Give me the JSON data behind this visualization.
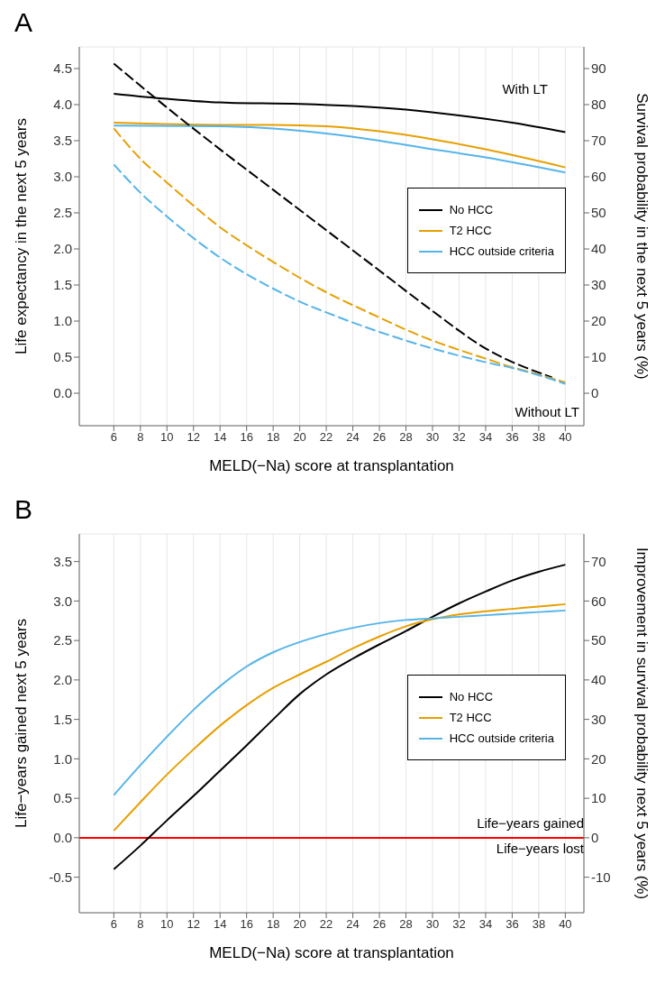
{
  "chart_data": [
    {
      "type": "line",
      "title": "A",
      "xlabel": "MELD(−Na) score at transplantation",
      "ylabel": "Life expectancy in the next 5 years",
      "y2label": "Survival probability in the next 5 years (%)",
      "xlim": [
        3.4,
        41.4
      ],
      "xticks": [
        6,
        8,
        10,
        12,
        14,
        16,
        18,
        20,
        22,
        24,
        26,
        28,
        30,
        32,
        34,
        36,
        38,
        40
      ],
      "ylim": [
        -0.45,
        4.8
      ],
      "yticks": [
        {
          "value": 0,
          "label": "0.0"
        },
        0.5,
        {
          "value": 1,
          "label": "1.0"
        },
        1.5,
        {
          "value": 2,
          "label": "2.0"
        },
        2.5,
        {
          "value": 3,
          "label": "3.0"
        },
        3.5,
        {
          "value": 4,
          "label": "4.0"
        },
        4.5
      ],
      "y2lim": [
        -9,
        96
      ],
      "y2ticks": [
        0,
        10,
        20,
        30,
        40,
        50,
        60,
        70,
        80,
        90
      ],
      "grid": true,
      "legend": "right",
      "series": [
        {
          "name": "No HCC",
          "color": "#000000",
          "line_style": "solid",
          "x": [
            6,
            10,
            14,
            20,
            24,
            28,
            32,
            36,
            40
          ],
          "values": [
            4.15,
            4.08,
            4.03,
            4.01,
            3.98,
            3.93,
            3.85,
            3.75,
            3.62
          ]
        },
        {
          "name": "T2 HCC",
          "color": "#e69f00",
          "line_style": "solid",
          "x": [
            6,
            14,
            18,
            22,
            26,
            30,
            34,
            40
          ],
          "values": [
            3.75,
            3.72,
            3.72,
            3.7,
            3.63,
            3.52,
            3.38,
            3.13
          ]
        },
        {
          "name": "HCC outside criteria",
          "color": "#56b4e9",
          "line_style": "solid",
          "x": [
            6,
            14,
            18,
            22,
            26,
            30,
            34,
            40
          ],
          "values": [
            3.71,
            3.7,
            3.67,
            3.6,
            3.5,
            3.38,
            3.27,
            3.06
          ]
        },
        {
          "color": "#000000",
          "line_style": "dashed",
          "x": [
            6,
            10,
            14,
            18,
            22,
            26,
            30,
            34,
            39
          ],
          "values": [
            4.57,
            3.96,
            3.38,
            2.82,
            2.26,
            1.7,
            1.14,
            0.62,
            0.22
          ]
        },
        {
          "color": "#e69f00",
          "line_style": "dashed",
          "x": [
            6,
            8,
            10,
            12,
            14,
            16,
            18,
            20,
            22,
            24,
            26,
            28,
            30,
            32,
            34,
            36,
            38,
            40
          ],
          "values": [
            3.67,
            3.25,
            2.92,
            2.6,
            2.3,
            2.05,
            1.82,
            1.6,
            1.4,
            1.22,
            1.05,
            0.88,
            0.73,
            0.6,
            0.48,
            0.36,
            0.26,
            0.15
          ]
        },
        {
          "color": "#56b4e9",
          "line_style": "dashed",
          "x": [
            6,
            8,
            10,
            12,
            14,
            16,
            18,
            20,
            22,
            24,
            26,
            28,
            30,
            32,
            34,
            36,
            38,
            40
          ],
          "values": [
            3.17,
            2.78,
            2.45,
            2.15,
            1.88,
            1.65,
            1.45,
            1.27,
            1.12,
            0.98,
            0.85,
            0.73,
            0.62,
            0.52,
            0.43,
            0.35,
            0.25,
            0.13
          ]
        }
      ],
      "annotations": [
        "With LT",
        "Without LT"
      ]
    },
    {
      "type": "line",
      "title": "B",
      "xlabel": "MELD(−Na) score at transplantation",
      "ylabel": "Life−years gained next 5 years",
      "y2label": "Improvement in survival probability next 5 years (%)",
      "xlim": [
        3.4,
        41.4
      ],
      "xticks": [
        6,
        8,
        10,
        12,
        14,
        16,
        18,
        20,
        22,
        24,
        26,
        28,
        30,
        32,
        34,
        36,
        38,
        40
      ],
      "ylim": [
        -0.95,
        3.85
      ],
      "yticks": [
        -0.5,
        {
          "value": 0,
          "label": "0.0"
        },
        0.5,
        {
          "value": 1,
          "label": "1.0"
        },
        1.5,
        {
          "value": 2,
          "label": "2.0"
        },
        2.5,
        {
          "value": 3,
          "label": "3.0"
        },
        3.5
      ],
      "y2lim": [
        -19,
        77
      ],
      "y2ticks": [
        -10,
        0,
        10,
        20,
        30,
        40,
        50,
        60,
        70
      ],
      "grid": true,
      "legend": "right",
      "series": [
        {
          "name": "No HCC",
          "color": "#000000",
          "x": [
            6,
            8,
            10,
            12,
            14,
            16,
            18,
            20,
            22,
            24,
            26,
            28,
            30,
            32,
            34,
            36,
            38,
            40
          ],
          "values": [
            -0.4,
            -0.1,
            0.22,
            0.53,
            0.85,
            1.17,
            1.5,
            1.82,
            2.07,
            2.27,
            2.45,
            2.62,
            2.8,
            2.97,
            3.12,
            3.26,
            3.37,
            3.46
          ]
        },
        {
          "name": "T2 HCC",
          "color": "#e69f00",
          "x": [
            6,
            8,
            10,
            12,
            14,
            16,
            18,
            20,
            22,
            24,
            26,
            28,
            30,
            32,
            34,
            36,
            38,
            40
          ],
          "values": [
            0.09,
            0.45,
            0.8,
            1.12,
            1.42,
            1.68,
            1.9,
            2.07,
            2.23,
            2.4,
            2.55,
            2.68,
            2.77,
            2.83,
            2.87,
            2.9,
            2.93,
            2.96
          ]
        },
        {
          "name": "HCC outside criteria",
          "color": "#56b4e9",
          "x": [
            6,
            8,
            10,
            12,
            14,
            16,
            18,
            20,
            22,
            24,
            26,
            28,
            30,
            32,
            34,
            36,
            38,
            40
          ],
          "values": [
            0.54,
            0.92,
            1.28,
            1.62,
            1.92,
            2.17,
            2.35,
            2.48,
            2.58,
            2.66,
            2.72,
            2.76,
            2.78,
            2.8,
            2.82,
            2.84,
            2.86,
            2.88
          ]
        }
      ],
      "ref_lines": [
        {
          "axis": "y",
          "value": 0,
          "color": "#ff0000"
        }
      ],
      "annotations": [
        "Life−years gained",
        "Life−years lost"
      ]
    }
  ]
}
